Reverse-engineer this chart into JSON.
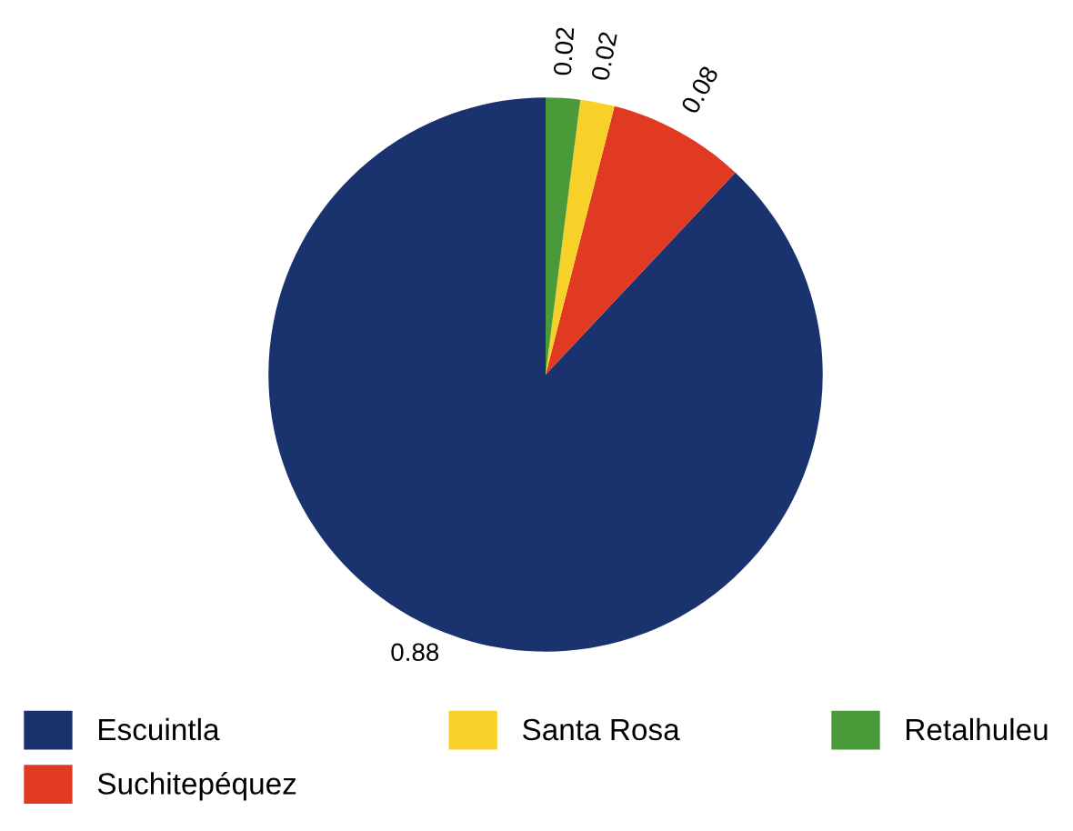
{
  "chart_data": {
    "type": "pie",
    "categories": [
      "Escuintla",
      "Suchitepéquez",
      "Santa Rosa",
      "Retalhuleu"
    ],
    "values": [
      0.88,
      0.08,
      0.02,
      0.02
    ],
    "colors": [
      "#1a336e",
      "#e03a22",
      "#f7d12a",
      "#4a9a3a"
    ],
    "data_labels": true,
    "legend": "bottom"
  }
}
